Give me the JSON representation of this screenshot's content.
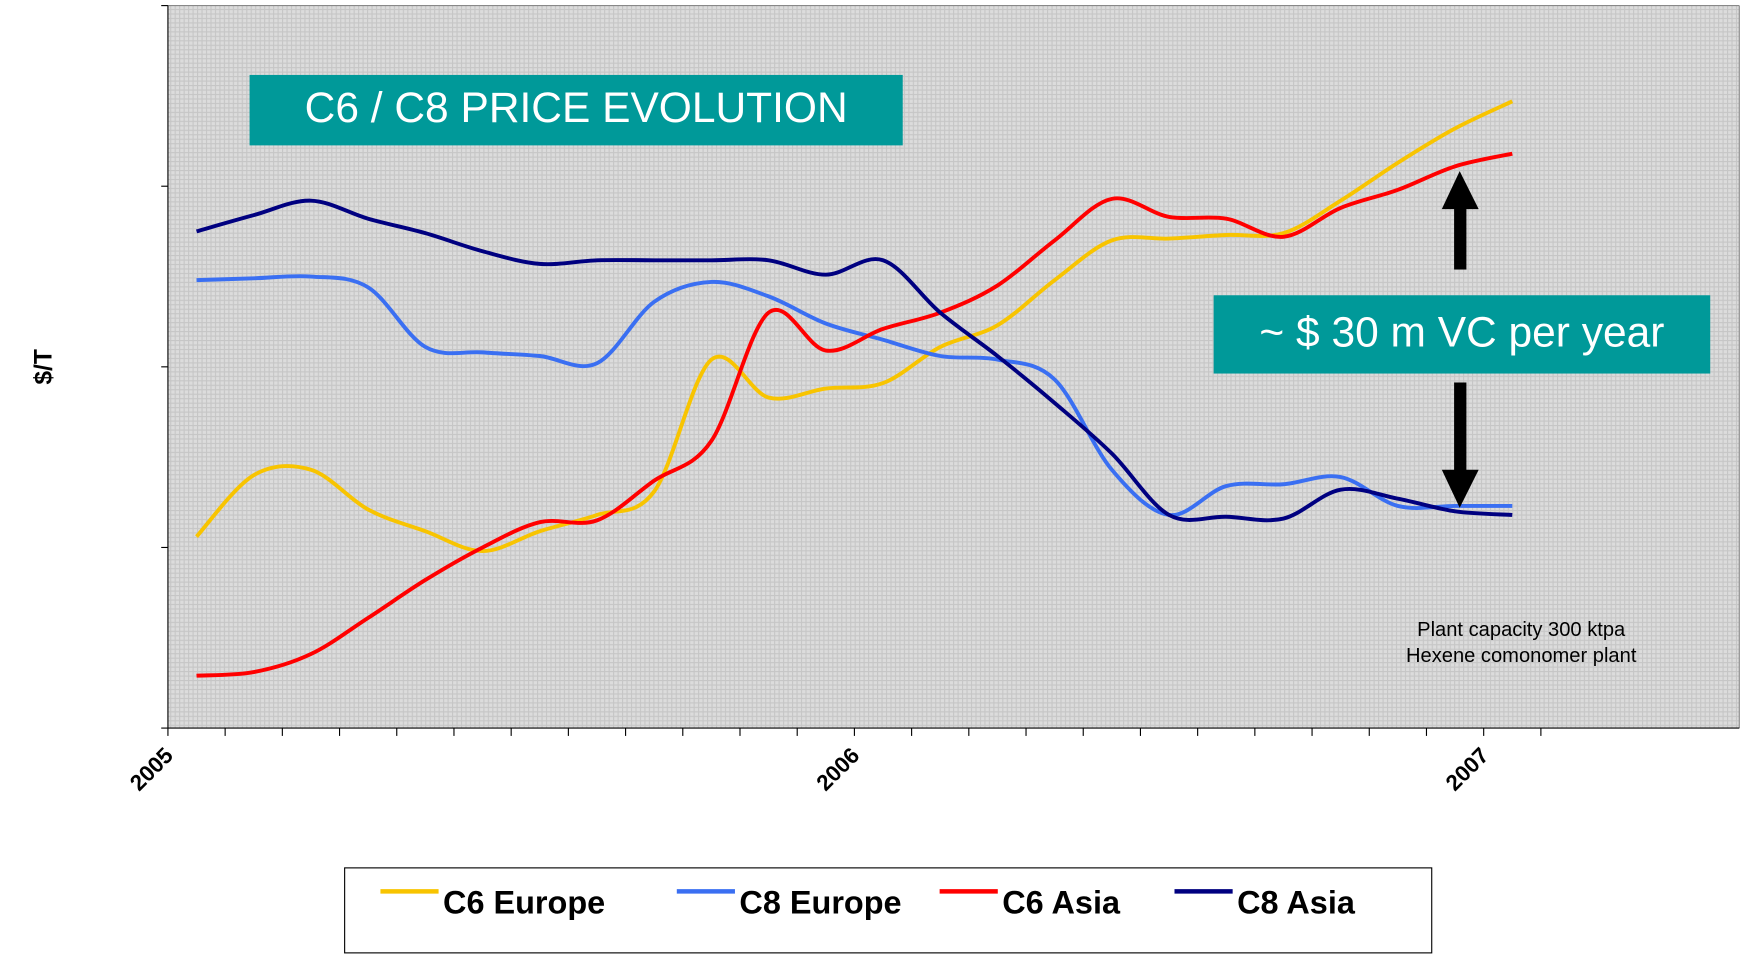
{
  "chart_data": {
    "type": "line",
    "title": "C6 / C8 PRICE EVOLUTION",
    "y_label": "$/T",
    "annotations": [
      "~ $ 30 m VC per year",
      "Plant capacity 300 ktpa",
      "Hexene comonomer plant"
    ],
    "categories": [
      "2005",
      null,
      null,
      null,
      null,
      null,
      null,
      null,
      null,
      null,
      null,
      null,
      "2006",
      null,
      null,
      null,
      null,
      null,
      null,
      null,
      null,
      null,
      null,
      "2007"
    ],
    "series": [
      {
        "name": "C6 Europe",
        "color": "#f8c400",
        "values": [
          1.06,
          1.4,
          1.43,
          1.21,
          1.09,
          0.98,
          1.09,
          1.18,
          1.31,
          2.04,
          1.83,
          1.88,
          1.91,
          2.11,
          2.23,
          2.48,
          2.7,
          2.71,
          2.73,
          2.74,
          2.92,
          3.13,
          3.32,
          3.47
        ]
      },
      {
        "name": "C8 Europe",
        "color": "#3a6ff2",
        "values": [
          2.48,
          2.49,
          2.5,
          2.44,
          2.11,
          2.08,
          2.06,
          2.02,
          2.36,
          2.47,
          2.39,
          2.24,
          2.15,
          2.06,
          2.04,
          1.93,
          1.43,
          1.18,
          1.34,
          1.35,
          1.39,
          1.23,
          1.23,
          1.23
        ]
      },
      {
        "name": "C6 Asia",
        "color": "#ff0000",
        "values": [
          0.29,
          0.31,
          0.41,
          0.61,
          0.82,
          1.0,
          1.14,
          1.15,
          1.37,
          1.59,
          2.3,
          2.09,
          2.21,
          2.3,
          2.45,
          2.7,
          2.93,
          2.83,
          2.82,
          2.72,
          2.88,
          2.98,
          3.11,
          3.18
        ]
      },
      {
        "name": "C8 Asia",
        "color": "#000080",
        "values": [
          2.75,
          2.84,
          2.92,
          2.82,
          2.74,
          2.64,
          2.57,
          2.59,
          2.59,
          2.59,
          2.59,
          2.51,
          2.59,
          2.3,
          2.06,
          1.8,
          1.52,
          1.18,
          1.17,
          1.16,
          1.32,
          1.27,
          1.2,
          1.18
        ]
      }
    ],
    "ylim": [
      0,
      4
    ],
    "yticks": [
      0,
      1,
      2,
      3,
      4
    ],
    "legend": "bottom"
  }
}
